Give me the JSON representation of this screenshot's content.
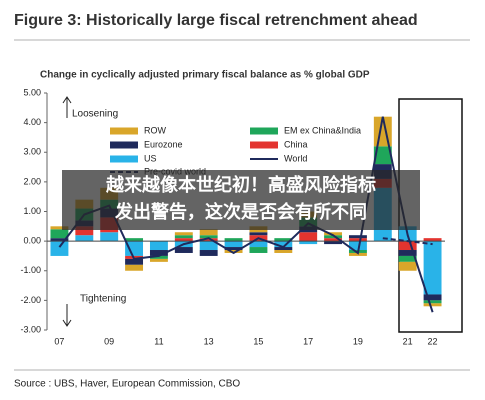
{
  "chart_data": {
    "type": "bar",
    "title": "Figure 3: Historically large fiscal retrenchment ahead",
    "subtitle": "Change in cyclically adjusted primary fiscal balance as % global GDP",
    "source": "Source : UBS, Haver, European Commission, CBO",
    "annotations": [
      "Loosening",
      "Tightening"
    ],
    "overlay_text": [
      "越来越像本世纪初！高盛风险指标",
      "发出警告，这次是否会有所不同"
    ],
    "categories": [
      "07",
      null,
      "09",
      null,
      "11",
      null,
      "13",
      null,
      "15",
      null,
      "17",
      null,
      "19",
      null,
      "21",
      "22"
    ],
    "series": [
      {
        "name": "US",
        "color": "#29b3e8",
        "values": [
          -0.5,
          0.2,
          0.3,
          -0.5,
          -0.3,
          -0.2,
          -0.3,
          -0.2,
          -0.2,
          -0.2,
          -0.1,
          0.0,
          -0.3,
          1.8,
          0.5,
          -1.8
        ]
      },
      {
        "name": "China",
        "color": "#e3342f",
        "values": [
          0.0,
          0.3,
          0.5,
          -0.1,
          0.0,
          0.1,
          0.1,
          0.0,
          0.2,
          0.0,
          0.3,
          0.1,
          0.1,
          0.3,
          -0.3,
          0.1
        ]
      },
      {
        "name": "Eurozone",
        "color": "#1f2a5c",
        "values": [
          0.1,
          0.2,
          0.3,
          -0.2,
          -0.2,
          -0.2,
          -0.2,
          -0.1,
          0.1,
          -0.1,
          0.2,
          -0.1,
          0.1,
          0.5,
          -0.2,
          -0.2
        ]
      },
      {
        "name": "EM ex China&India",
        "color": "#1fa65a",
        "values": [
          0.3,
          0.4,
          0.3,
          0.1,
          -0.1,
          0.1,
          0.1,
          0.1,
          -0.2,
          0.1,
          0.3,
          0.1,
          -0.1,
          0.6,
          -0.2,
          -0.1
        ]
      },
      {
        "name": "ROW",
        "color": "#d9a62a",
        "values": [
          0.1,
          0.3,
          0.4,
          -0.2,
          -0.1,
          0.1,
          0.2,
          -0.1,
          0.2,
          -0.1,
          0.2,
          0.1,
          -0.1,
          1.0,
          -0.3,
          -0.1
        ]
      }
    ],
    "lines": [
      {
        "name": "World",
        "color": "#1f2a5c",
        "dash": false,
        "values": [
          -0.2,
          0.9,
          1.2,
          -0.6,
          -0.5,
          -0.1,
          0.1,
          -0.4,
          0.1,
          -0.2,
          0.6,
          0.2,
          -0.4,
          4.2,
          0.2,
          -2.4
        ]
      },
      {
        "name": "Pre-covid world",
        "color": "#1f2a5c",
        "dash": true,
        "values": [
          null,
          null,
          null,
          null,
          null,
          null,
          null,
          null,
          null,
          null,
          null,
          null,
          null,
          0.1,
          0.0,
          -0.1
        ]
      }
    ],
    "ylim": [
      -3,
      5
    ],
    "yticks": [
      {
        "value": -3,
        "label": "-3.00"
      },
      {
        "value": -2,
        "label": "-2.00"
      },
      {
        "value": -1,
        "label": "-1.00"
      },
      {
        "value": 0,
        "label": "0.00"
      },
      {
        "value": 1,
        "label": "1.00"
      },
      {
        "value": 2,
        "label": "2.00"
      },
      {
        "value": 3,
        "label": "3.00"
      },
      {
        "value": 4,
        "label": "4.00"
      },
      {
        "value": 5,
        "label": "5.00"
      }
    ]
  }
}
